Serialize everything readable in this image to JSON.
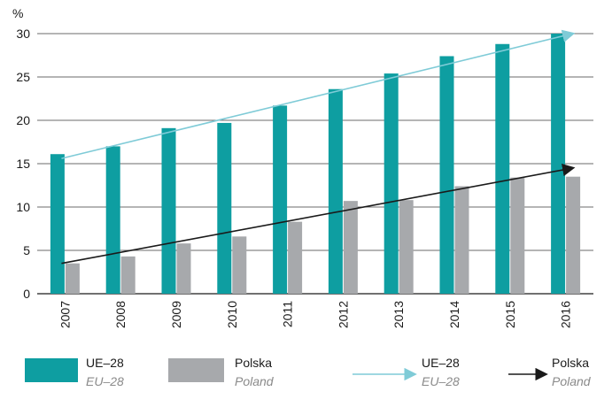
{
  "chart_data": {
    "type": "bar",
    "y_unit": "%",
    "categories": [
      "2007",
      "2008",
      "2009",
      "2010",
      "2011",
      "2012",
      "2013",
      "2014",
      "2015",
      "2016"
    ],
    "ylim": [
      0,
      30
    ],
    "yticks": [
      0,
      5,
      10,
      15,
      20,
      25,
      30
    ],
    "grid": true,
    "series": [
      {
        "name": "UE–28",
        "name_en": "EU–28",
        "color": "#0e9ea1",
        "values": [
          16.1,
          17.0,
          19.1,
          19.7,
          21.7,
          23.6,
          25.4,
          27.4,
          28.8,
          30.0
        ]
      },
      {
        "name": "Polska",
        "name_en": "Poland",
        "color": "#a7a9ac",
        "values": [
          3.5,
          4.3,
          5.8,
          6.6,
          8.3,
          10.7,
          10.8,
          12.4,
          13.4,
          13.5
        ]
      }
    ],
    "trend_lines": [
      {
        "name": "UE–28",
        "name_en": "EU–28",
        "color": "#7fcbd7",
        "start": 15.6,
        "end": 30.0
      },
      {
        "name": "Polska",
        "name_en": "Poland",
        "color": "#1a1a1a",
        "start": 3.5,
        "end": 14.5
      }
    ],
    "legend_position": "bottom"
  }
}
